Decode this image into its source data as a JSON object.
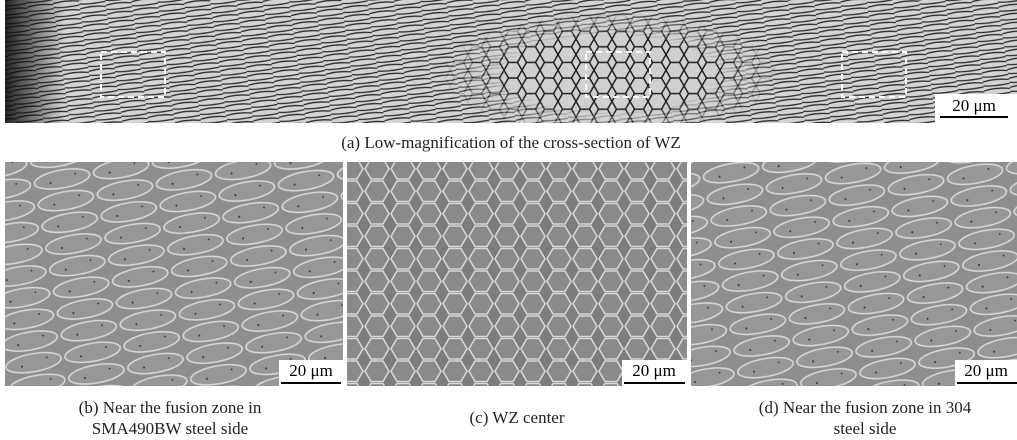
{
  "panels": [
    {
      "caption": [
        "(a) Low-magnification of the cross-section of WZ"
      ],
      "scale_bar": "20 μm"
    },
    {
      "caption": [
        "(b) Near the fusion zone in",
        "SMA490BW steel side"
      ],
      "scale_bar": "20 μm"
    },
    {
      "caption": [
        "(c) WZ center"
      ],
      "scale_bar": "20 μm"
    },
    {
      "caption": [
        "(d) Near the fusion zone in 304",
        "steel side"
      ],
      "scale_bar": "20 μm"
    }
  ]
}
